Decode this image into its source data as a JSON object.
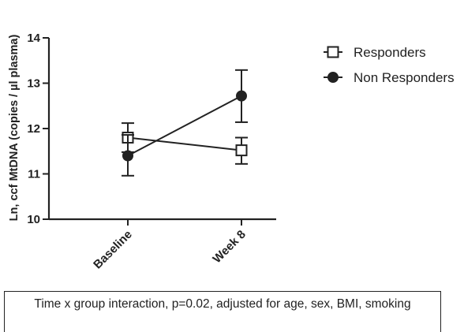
{
  "chart_data": {
    "type": "line",
    "title": "",
    "xlabel": "",
    "ylabel": "Ln, ccf MtDNA (copies / µl plasma)",
    "categories": [
      "Baseline",
      "Week 8"
    ],
    "ylim": [
      10,
      14
    ],
    "yticks": [
      "10",
      "11",
      "12",
      "13",
      "14"
    ],
    "legend_position": "top-right",
    "series": [
      {
        "name": "Responders",
        "marker": "open-square",
        "values": [
          11.8,
          11.52
        ],
        "error_low": [
          11.48,
          11.22
        ],
        "error_high": [
          12.12,
          11.8
        ]
      },
      {
        "name": "Non Responders",
        "marker": "filled-circle",
        "values": [
          11.4,
          12.72
        ],
        "error_low": [
          10.96,
          12.14
        ],
        "error_high": [
          11.86,
          13.29
        ]
      }
    ],
    "annotation": "Time x group interaction, p=0.02, adjusted for age, sex, BMI, smoking"
  }
}
